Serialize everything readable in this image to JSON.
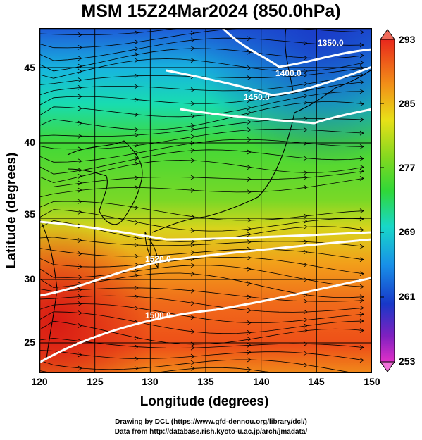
{
  "title": "MSM 15Z24Mar2024 (850.0hPa)",
  "xaxis": {
    "label": "Longitude (degrees)",
    "ticks": [
      "120",
      "125",
      "130",
      "135",
      "140",
      "145",
      "150"
    ],
    "range": [
      120,
      150
    ]
  },
  "yaxis": {
    "label": "Latitude  (degrees)",
    "ticks": [
      "25",
      "30",
      "35",
      "40",
      "45"
    ],
    "range": [
      22.4,
      47.6
    ]
  },
  "colorbar": {
    "ticks": [
      "293",
      "285",
      "277",
      "269",
      "261",
      "253"
    ],
    "range": [
      253,
      293
    ]
  },
  "contour_labels": [
    "1350.0",
    "1400.0",
    "1450.0",
    "1520.0",
    "1500.0"
  ],
  "credits": {
    "line1": "Drawing by DCL (https://www.gfd-dennou.org/library/dcl/)",
    "line2": "Data from http://database.rish.kyoto-u.ac.jp/arch/jmadata/"
  },
  "colors": {
    "cold": "#1e5ad8",
    "cool": "#17d6c8",
    "mild": "#3fd838",
    "warm": "#e6d21e",
    "hot": "#e83c1c"
  }
}
